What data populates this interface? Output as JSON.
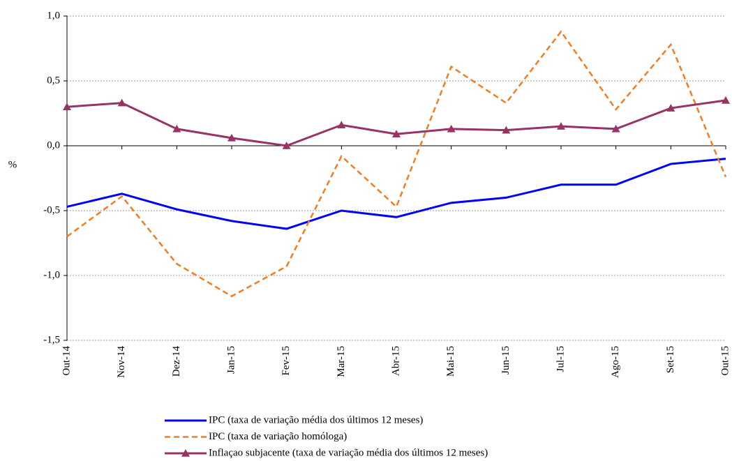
{
  "chart_data": {
    "type": "line",
    "y_label": "%",
    "categories": [
      "Out-14",
      "Nov-14",
      "Dez-14",
      "Jan-15",
      "Fev-15",
      "Mar-15",
      "Abr-15",
      "Mai-15",
      "Jun-15",
      "Jul-15",
      "Ago-15",
      "Set-15",
      "Out-15"
    ],
    "series": [
      {
        "name": "IPC (taxa de variação média dos últimos 12 meses)",
        "color": "#0000ff",
        "dashed": false,
        "marker": "none",
        "values": [
          -0.47,
          -0.37,
          -0.49,
          -0.58,
          -0.64,
          -0.5,
          -0.55,
          -0.44,
          -0.4,
          -0.3,
          -0.3,
          -0.14,
          -0.1
        ]
      },
      {
        "name": "IPC (taxa de variação homóloga)",
        "color": "#f47c20",
        "dashed": true,
        "marker": "none",
        "values": [
          -0.7,
          -0.39,
          -0.91,
          -1.16,
          -0.93,
          -0.08,
          -0.47,
          0.61,
          0.33,
          0.88,
          0.28,
          0.78,
          -0.24
        ]
      },
      {
        "name": "Inflaçao subjacente (taxa de variação média dos últimos 12 meses)",
        "color": "#993366",
        "dashed": false,
        "marker": "triangle",
        "values": [
          0.3,
          0.33,
          0.13,
          0.06,
          0.0,
          0.16,
          0.09,
          0.13,
          0.12,
          0.15,
          0.13,
          0.29,
          0.35
        ]
      }
    ],
    "ylim": [
      -1.5,
      1.0
    ],
    "yticks": [
      {
        "value": -1.5,
        "label": "-1,5"
      },
      {
        "value": -1.0,
        "label": "-1,0"
      },
      {
        "value": -0.5,
        "label": "-0,5"
      },
      {
        "value": 0,
        "label": "0,0"
      },
      {
        "value": 0.5,
        "label": "0,5"
      },
      {
        "value": 1.0,
        "label": "1,0"
      }
    ],
    "grid": true
  }
}
